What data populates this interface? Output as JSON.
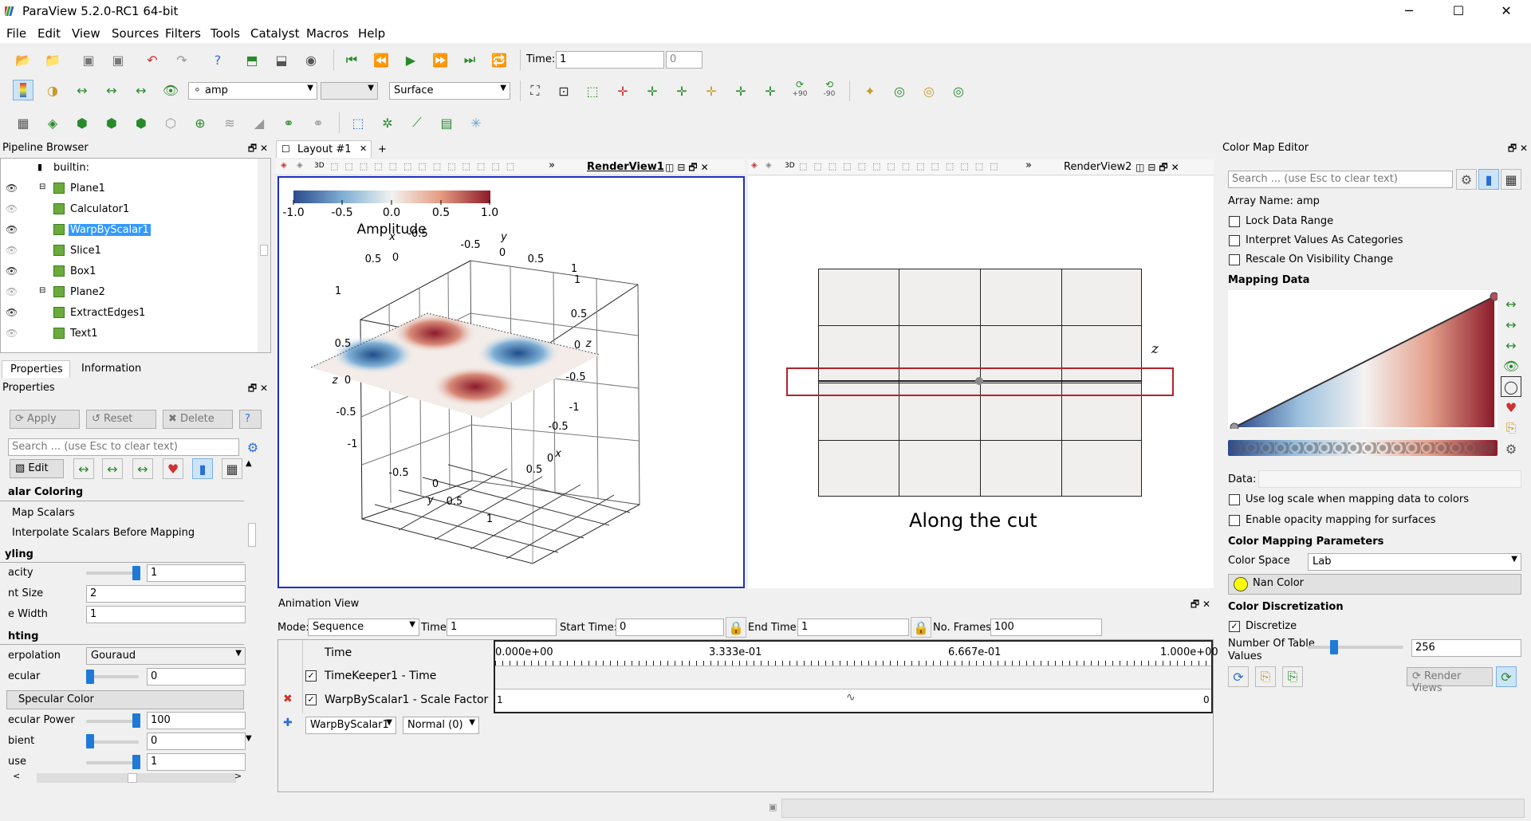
{
  "window": {
    "title": "ParaView 5.2.0-RC1 64-bit"
  },
  "menu": [
    "File",
    "Edit",
    "View",
    "Sources",
    "Filters",
    "Tools",
    "Catalyst",
    "Macros",
    "Help"
  ],
  "toolbar": {
    "time_label": "Time:",
    "time_value": "1",
    "time_index": "0",
    "color_array": "amp",
    "representation": "Surface",
    "rot_pos90": "+90",
    "rot_neg90": "-90"
  },
  "pipeline": {
    "title": "Pipeline Browser",
    "items": [
      "builtin:",
      "Plane1",
      "Calculator1",
      "WarpByScalar1",
      "Slice1",
      "Box1",
      "Plane2",
      "ExtractEdges1",
      "Text1"
    ],
    "selected": "WarpByScalar1"
  },
  "tabs": {
    "properties": "Properties",
    "information": "Information"
  },
  "properties": {
    "title": "Properties",
    "apply": "Apply",
    "reset": "Reset",
    "delete": "Delete",
    "search_placeholder": "Search ... (use Esc to clear text)",
    "edit": "Edit",
    "sec_coloring": "alar Coloring",
    "map_scalars": "Map Scalars",
    "interpolate": "Interpolate Scalars Before Mapping",
    "sec_styling": "yling",
    "opacity_lbl": "acity",
    "opacity_val": "1",
    "point_size_lbl": "nt Size",
    "point_size_val": "2",
    "line_width_lbl": "e Width",
    "line_width_val": "1",
    "sec_lighting": "hting",
    "interp_lbl": "erpolation",
    "interp_val": "Gouraud",
    "specular_lbl": "ecular",
    "specular_val": "0",
    "specular_color": "Specular Color",
    "spec_power_lbl": "ecular Power",
    "spec_power_val": "100",
    "ambient_lbl": "bient",
    "ambient_val": "0",
    "diffuse_lbl": "use",
    "diffuse_val": "1"
  },
  "layout": {
    "tab": "Layout #1",
    "rv1": "RenderView1",
    "rv2": "RenderView2",
    "mode3d": "3D"
  },
  "colorbar": {
    "ticks": [
      "-1.0",
      "-0.5",
      "0.0",
      "0.5",
      "1.0"
    ],
    "title": "Amplitude"
  },
  "plot3d": {
    "ticks_x_top": [
      "-0.5",
      "0"
    ],
    "ticks_y_top": [
      "-0.5",
      "0",
      "0.5",
      "1"
    ],
    "ticks_z_left": [
      "1",
      "0.5",
      "0",
      "-0.5",
      "-1"
    ],
    "ticks_z_right": [
      "1",
      "0.5",
      "0",
      "-0.5",
      "-1"
    ],
    "ticks_x_bottom": [
      "-0.5",
      "0",
      "0.5"
    ],
    "ticks_y_bottom": [
      "-0.5",
      "0",
      "0.5",
      "1"
    ],
    "axis_x": "x",
    "axis_y": "y",
    "axis_z": "z",
    "left_top_tick": "0.5",
    "left_bot_tick": "1"
  },
  "rv2": {
    "caption": "Along the cut",
    "axis_z": "z"
  },
  "animation": {
    "title": "Animation View",
    "mode_lbl": "Mode:",
    "mode_val": "Sequence",
    "time_lbl": "Time",
    "time_val": "1",
    "start_lbl": "Start Time:",
    "start_val": "0",
    "end_lbl": "End Time:",
    "end_val": "1",
    "frames_lbl": "No. Frames:",
    "frames_val": "100",
    "col_time": "Time",
    "track1": "TimeKeeper1 - Time",
    "track2": "WarpByScalar1 - Scale Factor",
    "ticks": [
      "0.000e+00",
      "3.333e-01",
      "6.667e-01",
      "1.000e+00"
    ],
    "track2_start": "1",
    "track2_end": "0",
    "add_source": "WarpByScalar1",
    "add_prop": "Normal (0)"
  },
  "cme": {
    "title": "Color Map Editor",
    "search_placeholder": "Search ... (use Esc to clear text)",
    "array_name": "Array Name: amp",
    "lock": "Lock Data Range",
    "interpret": "Interpret Values As Categories",
    "rescale": "Rescale On Visibility Change",
    "mapping_data": "Mapping Data",
    "data_lbl": "Data:",
    "log_scale": "Use log scale when mapping data to colors",
    "opacity_map": "Enable opacity mapping for surfaces",
    "params": "Color Mapping Parameters",
    "color_space_lbl": "Color Space",
    "color_space_val": "Lab",
    "nan_color": "Nan Color",
    "discretization": "Color Discretization",
    "discretize": "Discretize",
    "ntable_lbl1": "Number Of Table",
    "ntable_lbl2": "Values",
    "ntable_val": "256",
    "render_views": "Render Views"
  }
}
